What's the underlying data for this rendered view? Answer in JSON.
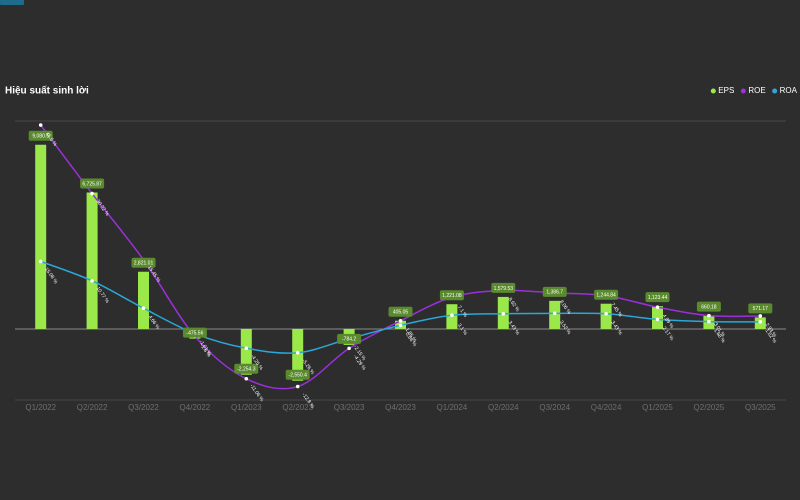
{
  "chart_data": {
    "type": "bar",
    "title": "Hiệu suất sinh lời",
    "categories": [
      "Q1/2022",
      "Q2/2022",
      "Q3/2022",
      "Q4/2022",
      "Q1/2023",
      "Q2/2023",
      "Q3/2023",
      "Q4/2023",
      "Q1/2024",
      "Q2/2024",
      "Q3/2024",
      "Q4/2024",
      "Q1/2025",
      "Q2/2025",
      "Q3/2025"
    ],
    "series": [
      {
        "name": "EPS",
        "type": "bar",
        "color": "#9be84a",
        "values": [
          9080.5,
          6725.87,
          2821.01,
          -475.56,
          -2254.3,
          -2550.4,
          -784.2,
          405.05,
          1221.08,
          1579.53,
          1386.7,
          1244.84,
          1123.44,
          660.18,
          571.17
        ],
        "value_labels": [
          "9,080.5",
          "6,725.87",
          "2,821.01",
          "-475.56",
          "-2,254.3",
          "-2,550.4",
          "-784.2",
          "405.05",
          "1,221.08",
          "1,579.53",
          "1,386.7",
          "1,244.84",
          "1,123.44",
          "660.18",
          "571.17"
        ]
      },
      {
        "name": "ROE",
        "type": "line",
        "axis": "y2",
        "color": "#9b30d9",
        "values": [
          45.5,
          30.22,
          15.45,
          -1.6,
          -11.06,
          -12.8,
          -4.29,
          1.85,
          7.1,
          8.62,
          8.06,
          7.45,
          4.89,
          3.01,
          2.93
        ],
        "value_labels": [
          "45.5 %",
          "30.22 %",
          "15.45 %",
          "-1.6 %",
          "-11.06 %",
          "-12.8 %",
          "-4.29 %",
          "1.85 %",
          "7.1 %",
          "8.62 %",
          "8.06 %",
          "7.45 %",
          "4.89 %",
          "3.01 %",
          "2.93 %"
        ]
      },
      {
        "name": "ROA",
        "type": "line",
        "axis": "y2",
        "color": "#2aa8d8",
        "values": [
          15.08,
          10.77,
          4.66,
          -1.01,
          -4.25,
          -5.26,
          -2.15,
          0.86,
          3.1,
          3.43,
          3.52,
          3.43,
          2.17,
          1.68,
          1.62
        ],
        "value_labels": [
          "15.08 %",
          "10.77 %",
          "4.66 %",
          "-1.01 %",
          "-4.25 %",
          "-5.26 %",
          "-2.15 %",
          "0.86 %",
          "3.1 %",
          "3.43 %",
          "3.52 %",
          "3.43 %",
          "2.17 %",
          "1.68 %",
          "1.62 %"
        ]
      }
    ],
    "ylim": [
      -3500,
      10250
    ],
    "y2lim": [
      -15.8,
      46.4
    ],
    "legend": "top-right"
  }
}
